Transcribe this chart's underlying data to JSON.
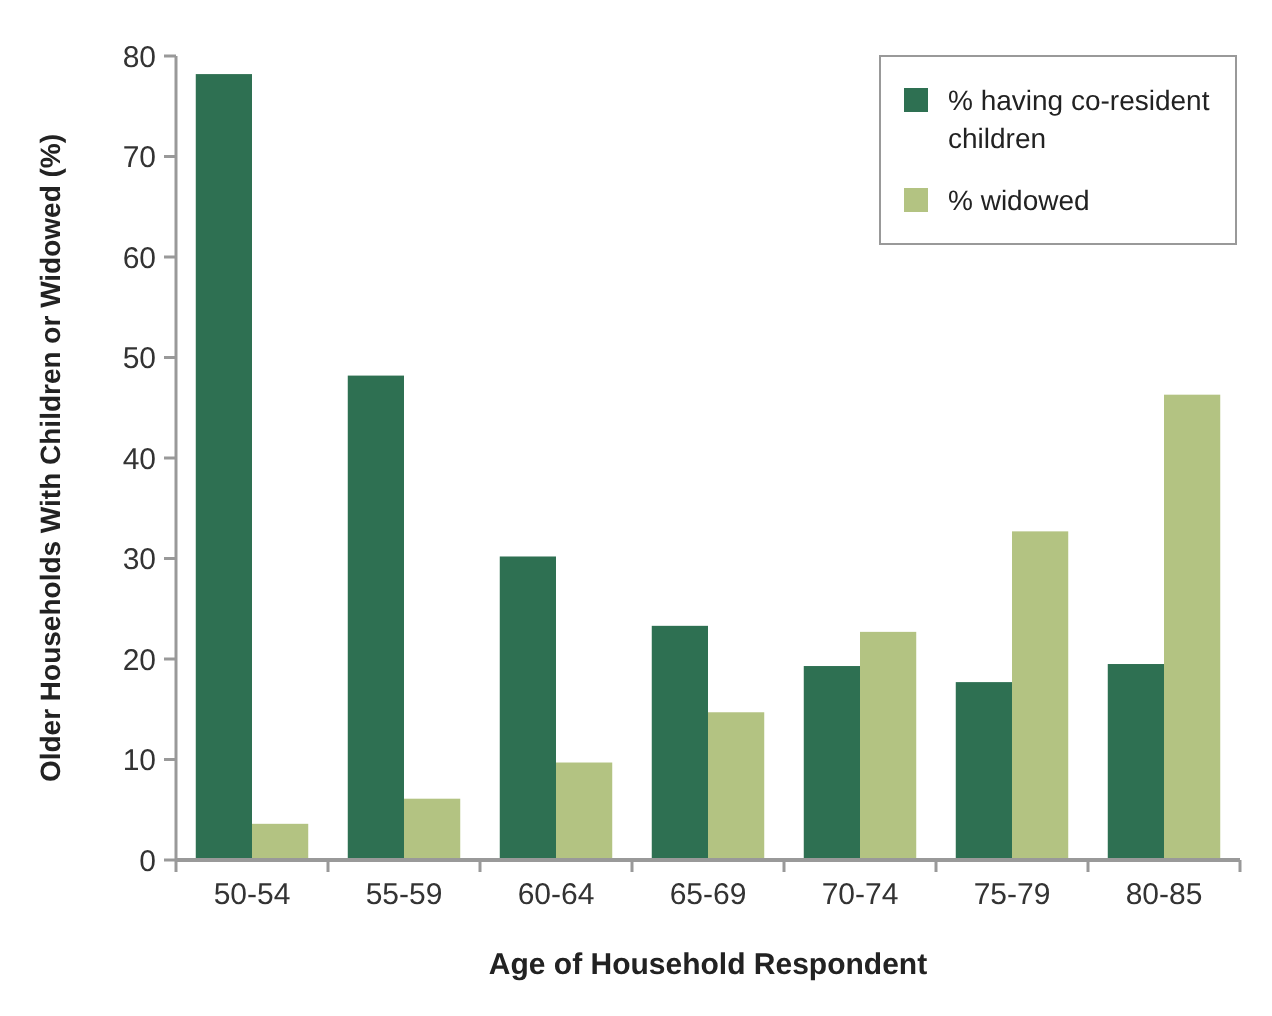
{
  "chart_data": {
    "type": "bar",
    "xlabel": "Age of Household Respondent",
    "ylabel": "Older Households With Children or Widowed (%)",
    "categories": [
      "50-54",
      "55-59",
      "60-64",
      "65-69",
      "70-74",
      "75-79",
      "80-85"
    ],
    "series": [
      {
        "name": "% having co-resident children",
        "color": "#2e7052",
        "values": [
          78.2,
          48.2,
          30.2,
          23.3,
          19.3,
          17.7,
          19.5
        ]
      },
      {
        "name": "% widowed",
        "color": "#b3c382",
        "values": [
          3.6,
          6.1,
          9.7,
          14.7,
          22.7,
          32.7,
          46.3
        ]
      }
    ],
    "ylim": [
      0,
      80
    ],
    "yticks": [
      0,
      10,
      20,
      30,
      40,
      50,
      60,
      70,
      80
    ],
    "grid": false,
    "legend": "top right"
  }
}
